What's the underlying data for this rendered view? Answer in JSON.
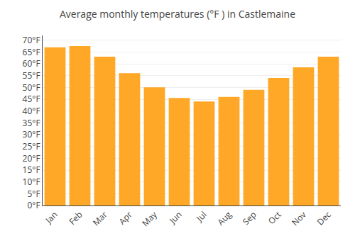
{
  "chart_data": {
    "type": "bar",
    "title": "Average monthly temperatures (°F ) in Castlemaine",
    "categories": [
      "Jan",
      "Feb",
      "Mar",
      "Apr",
      "May",
      "Jun",
      "Jul",
      "Aug",
      "Sep",
      "Oct",
      "Nov",
      "Dec"
    ],
    "values": [
      67,
      67.5,
      63,
      56,
      50,
      45.5,
      44,
      46,
      49,
      54,
      58.5,
      63
    ],
    "color": "#FFA726",
    "ylim": [
      0,
      72
    ],
    "yticks": [
      {
        "value": 0,
        "label": "0°F"
      },
      {
        "value": 5,
        "label": "5°F"
      },
      {
        "value": 10,
        "label": "10°F"
      },
      {
        "value": 15,
        "label": "15°F"
      },
      {
        "value": 20,
        "label": "20°F"
      },
      {
        "value": 25,
        "label": "25°F"
      },
      {
        "value": 30,
        "label": "30°F"
      },
      {
        "value": 35,
        "label": "35°F"
      },
      {
        "value": 40,
        "label": "40°F"
      },
      {
        "value": 45,
        "label": "45°F"
      },
      {
        "value": 50,
        "label": "50°F"
      },
      {
        "value": 55,
        "label": "55°F"
      },
      {
        "value": 60,
        "label": "60°F"
      },
      {
        "value": 65,
        "label": "65°F"
      },
      {
        "value": 70,
        "label": "70°F"
      }
    ],
    "grid": true
  }
}
